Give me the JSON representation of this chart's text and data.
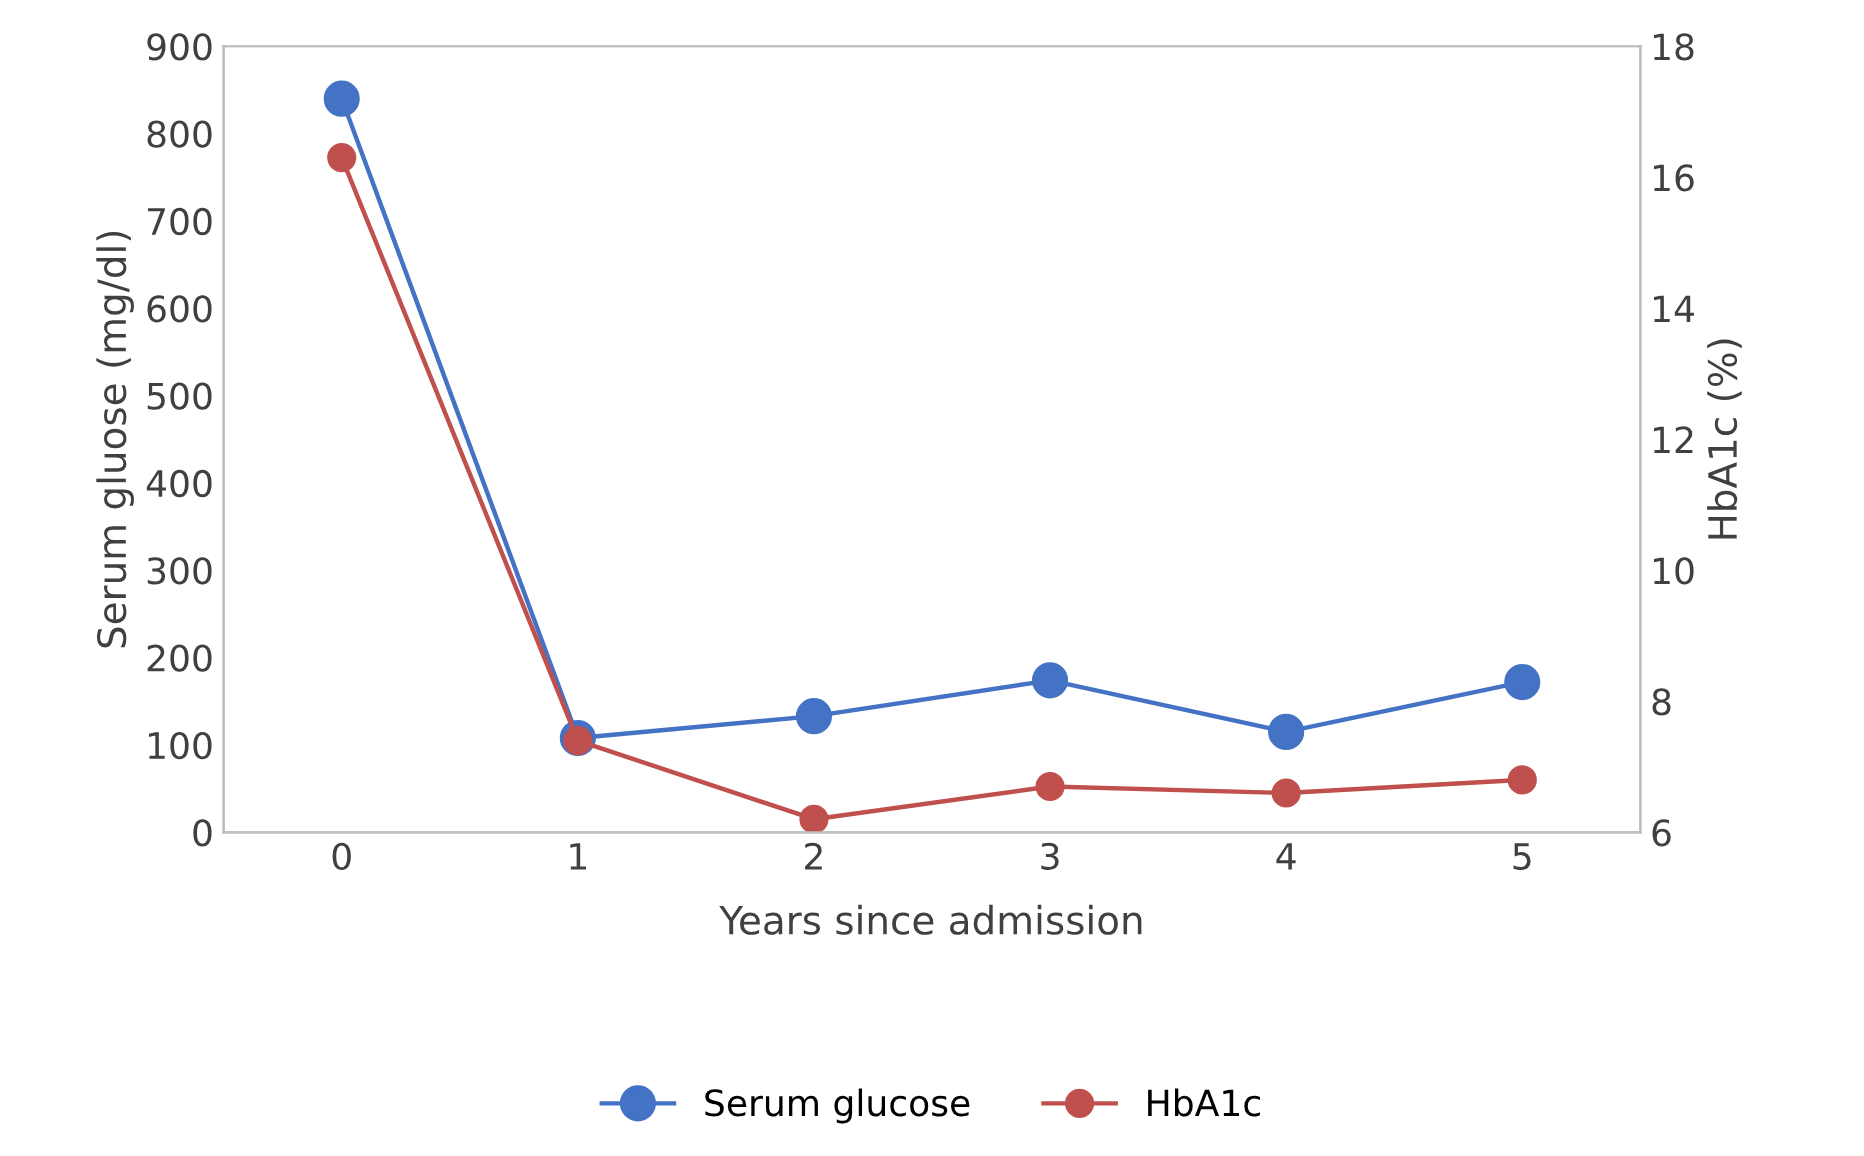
{
  "chart_data": {
    "type": "line",
    "xlabel": "Years since admission",
    "ylabel": "Serum gluose (mg/dl)",
    "y2label": "HbA1c (%)",
    "categories": [
      "0",
      "1",
      "2",
      "3",
      "4",
      "5"
    ],
    "series": [
      {
        "name": "Serum glucose",
        "color": "#4472c4",
        "values": [
          840,
          108,
          133,
          174,
          115,
          172
        ]
      },
      {
        "name": "HbA1c",
        "color": "#c0504d",
        "axis": "y2",
        "values": [
          16.3,
          7.4,
          6.2,
          6.7,
          6.6,
          6.8
        ]
      }
    ],
    "ylim": [
      0,
      900
    ],
    "yticks": [
      0,
      100,
      200,
      300,
      400,
      500,
      600,
      700,
      800,
      900
    ],
    "y2lim": [
      6,
      18
    ],
    "y2ticks": [
      6,
      8,
      10,
      12,
      14,
      16,
      18
    ],
    "marker": "circle",
    "line_style": "solid",
    "legend": "bottom",
    "grid": false
  }
}
